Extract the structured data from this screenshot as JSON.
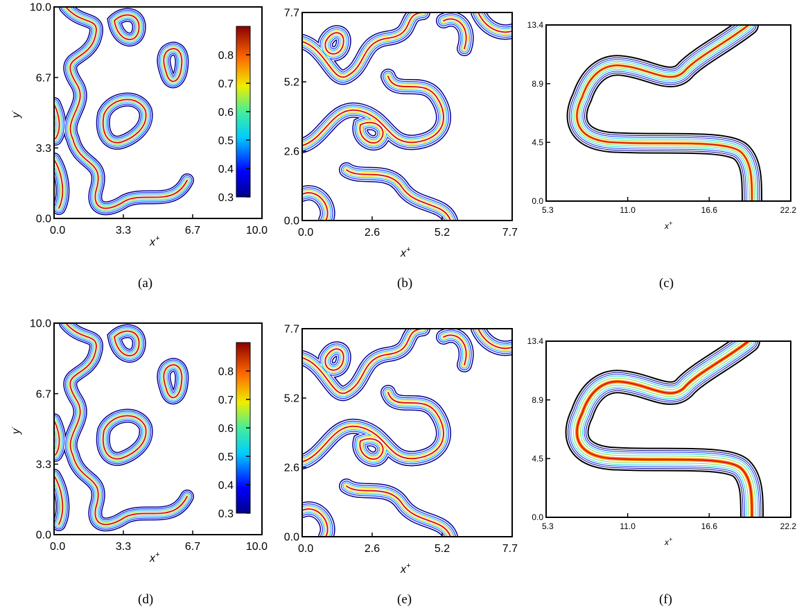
{
  "chart_data": [
    {
      "type": "contour",
      "panel": "(a)",
      "xlabel": "x",
      "xlabel_sup": "+",
      "ylabel": "y",
      "ylabel_sup": "·",
      "xticks": [
        "0.0",
        "3.3",
        "6.7",
        "10.0"
      ],
      "yticks": [
        "0.0",
        "3.3",
        "6.7",
        "10.0"
      ],
      "xlim": [
        0,
        10
      ],
      "ylim": [
        0,
        10
      ],
      "colorbar": {
        "ticks": [
          "0.3",
          "0.4",
          "0.5",
          "0.6",
          "0.7",
          "0.8"
        ],
        "range": [
          0.3,
          0.9
        ]
      }
    },
    {
      "type": "contour",
      "panel": "(b)",
      "xlabel": "x",
      "xlabel_sup": "+",
      "xticks": [
        "0.0",
        "2.6",
        "5.2",
        "7.7"
      ],
      "yticks": [
        "0.0",
        "2.6",
        "5.2",
        "7.7"
      ],
      "xlim": [
        0,
        7.7
      ],
      "ylim": [
        0,
        7.7
      ]
    },
    {
      "type": "contour",
      "panel": "(c)",
      "xlabel": "x",
      "xlabel_sup": "+",
      "xticks": [
        "5.3",
        "11.0",
        "16.6",
        "22.2"
      ],
      "yticks": [
        "0.0",
        "4.5",
        "8.9",
        "13.4"
      ],
      "xlim": [
        5.3,
        22.2
      ],
      "ylim": [
        0,
        13.4
      ]
    },
    {
      "type": "contour",
      "panel": "(d)",
      "xlabel": "x",
      "xlabel_sup": "+",
      "ylabel": "y",
      "ylabel_sup": "·",
      "xticks": [
        "0.0",
        "3.3",
        "6.7",
        "10.0"
      ],
      "yticks": [
        "0.0",
        "3.3",
        "6.7",
        "10.0"
      ],
      "xlim": [
        0,
        10
      ],
      "ylim": [
        0,
        10
      ],
      "colorbar": {
        "ticks": [
          "0.3",
          "0.4",
          "0.5",
          "0.6",
          "0.7",
          "0.8"
        ],
        "range": [
          0.3,
          0.9
        ]
      }
    },
    {
      "type": "contour",
      "panel": "(e)",
      "xlabel": "x",
      "xlabel_sup": "+",
      "xticks": [
        "0.0",
        "2.6",
        "5.2",
        "7.7"
      ],
      "yticks": [
        "0.0",
        "2.6",
        "5.2",
        "7.7"
      ],
      "xlim": [
        0,
        7.7
      ],
      "ylim": [
        0,
        7.7
      ]
    },
    {
      "type": "contour",
      "panel": "(f)",
      "xlabel": "x",
      "xlabel_sup": "+",
      "xticks": [
        "5.3",
        "11.0",
        "16.6",
        "22.2"
      ],
      "yticks": [
        "0.0",
        "4.5",
        "8.9",
        "13.4"
      ],
      "xlim": [
        5.3,
        22.2
      ],
      "ylim": [
        0,
        13.4
      ]
    }
  ],
  "contour_colors": [
    "#000000",
    "#00008b",
    "#2233ff",
    "#00aaff",
    "#22dddd",
    "#88dd44",
    "#e8d800",
    "#ff8800",
    "#dd1111"
  ]
}
